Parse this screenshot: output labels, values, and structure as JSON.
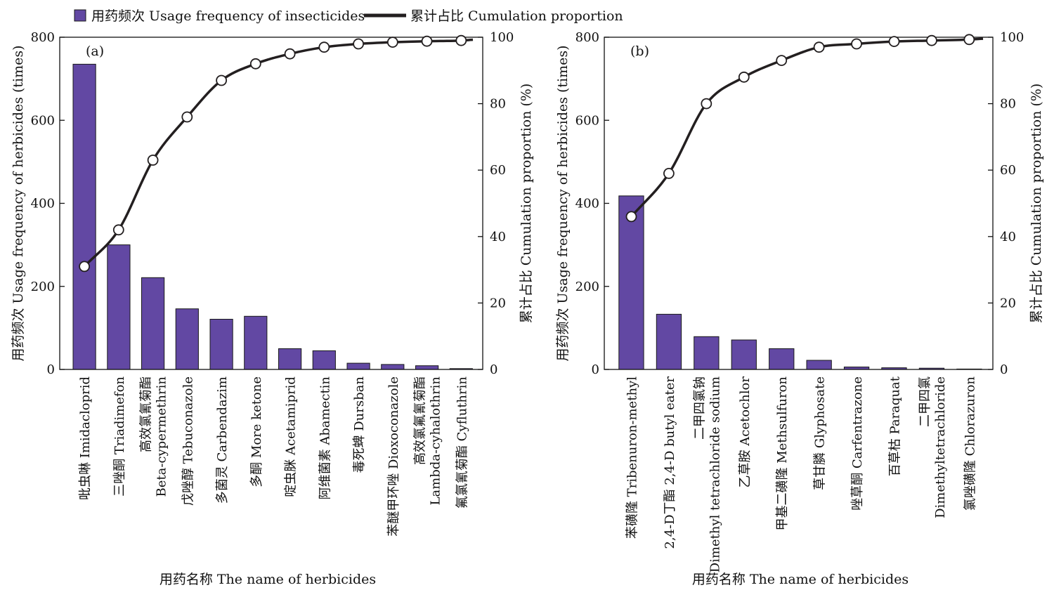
{
  "legend": {
    "bar_label": "用药频次 Usage frequency of insecticides",
    "line_label": "累计占比 Cumulation proportion"
  },
  "colors": {
    "bar": "#6248a3",
    "bar_edge": "#1a1a1a",
    "line": "#231f20",
    "marker_fill": "#ffffff"
  },
  "chart_data": [
    {
      "type": "bar",
      "panel_label": "(a)",
      "xlabel": "用药名称 The name of herbicides",
      "ylabel": "用药频次 Usage frequency of herbicides (times)",
      "y2label": "累计占比 Cumulation proportion (%)",
      "ylim": [
        0,
        800
      ],
      "y2lim": [
        0,
        100
      ],
      "yticks": [
        0,
        200,
        400,
        600,
        800
      ],
      "y2ticks": [
        0,
        20,
        40,
        60,
        80,
        100
      ],
      "categories": [
        [
          "吡虫啉 Imidacloprid"
        ],
        [
          "三唑酮 Triadimefon"
        ],
        [
          "高效氯氰菊酯",
          "Beta-cypermethrin"
        ],
        [
          "戊唑醇 Tebuconazole"
        ],
        [
          "多菌灵 Carbendazim"
        ],
        [
          "多酮 More ketone"
        ],
        [
          "啶虫脒 Acetamiprid"
        ],
        [
          "阿维菌素 Abamectin"
        ],
        [
          "毒死蜱 Dursban"
        ],
        [
          "苯醚甲环唑 Dioxoconazole"
        ],
        [
          "高效氯氟氰菊酯",
          "Lambda-cyhalothrin"
        ],
        [
          "氟氯氰菊酯 Cyfluthrin"
        ]
      ],
      "series": [
        {
          "values": [
            735,
            300,
            221,
            146,
            121,
            128,
            50,
            45,
            15,
            12,
            9,
            2
          ]
        },
        {
          "values": [
            31,
            42,
            63,
            76,
            87,
            92,
            95,
            97,
            98,
            98.5,
            98.8,
            99
          ]
        }
      ]
    },
    {
      "type": "bar",
      "panel_label": "(b)",
      "xlabel": "用药名称 The name of herbicides",
      "ylabel": "用药频次 Usage frequency of herbicides (times)",
      "y2label": "累计占比 Cumulation proportion (%)",
      "ylim": [
        0,
        800
      ],
      "y2lim": [
        0,
        100
      ],
      "yticks": [
        0,
        200,
        400,
        600,
        800
      ],
      "y2ticks": [
        0,
        20,
        40,
        60,
        80,
        100
      ],
      "categories": [
        [
          "苯磺隆 Tribenuron-methyl"
        ],
        [
          "2,4-D丁酯 2,4-D butyl eater"
        ],
        [
          "二甲四氯钠",
          "Dimethyl tetrachloride sodium"
        ],
        [
          "乙草胺 Acetochlor"
        ],
        [
          "甲基二磺隆 Methsulfuron"
        ],
        [
          "草甘膦 Glyphosate"
        ],
        [
          "唑草酮 Carfentrazone"
        ],
        [
          "百草枯 Paraquat"
        ],
        [
          "二甲四氯",
          "Dimethyltetrachloride"
        ],
        [
          "氯唑磺隆 Chlorazuron"
        ]
      ],
      "series": [
        {
          "values": [
            418,
            133,
            79,
            71,
            50,
            22,
            6,
            4,
            3,
            1
          ]
        },
        {
          "values": [
            46,
            59,
            80,
            88,
            93,
            97,
            98,
            98.7,
            99,
            99.3
          ]
        }
      ]
    }
  ]
}
